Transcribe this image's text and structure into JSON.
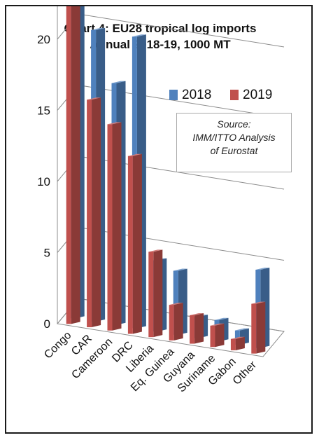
{
  "colors": {
    "s2018": "#4f81bd",
    "s2019": "#c0504d"
  },
  "chart_data": {
    "type": "bar",
    "style": "3d-clustered-column",
    "title_line1": "Chart 4: EU28 tropical log imports",
    "title_line2": "Annual 2018-19, 1000 MT",
    "ylim": [
      0,
      35
    ],
    "yticks": [
      "0",
      "5",
      "10",
      "15",
      "20",
      "25",
      "30",
      "35"
    ],
    "grid": true,
    "legend_position": "top-right",
    "categories": [
      "Congo",
      "CAR",
      "Cameroon",
      "DRC",
      "Liberia",
      "Eq. Guinea",
      "Guyana",
      "Suriname",
      "Gabon",
      "Other"
    ],
    "series": [
      {
        "name": "2018",
        "values": [
          29.5,
          20.5,
          17,
          20.5,
          5,
          4.5,
          1.5,
          1.5,
          1,
          5.5
        ]
      },
      {
        "name": "2019",
        "values": [
          34.5,
          16,
          14.5,
          12.5,
          6,
          2.5,
          2,
          1.5,
          0.8,
          3.5
        ]
      }
    ],
    "source_lines": [
      "Source:",
      "IMM/ITTO Analysis",
      "of Eurostat"
    ]
  }
}
